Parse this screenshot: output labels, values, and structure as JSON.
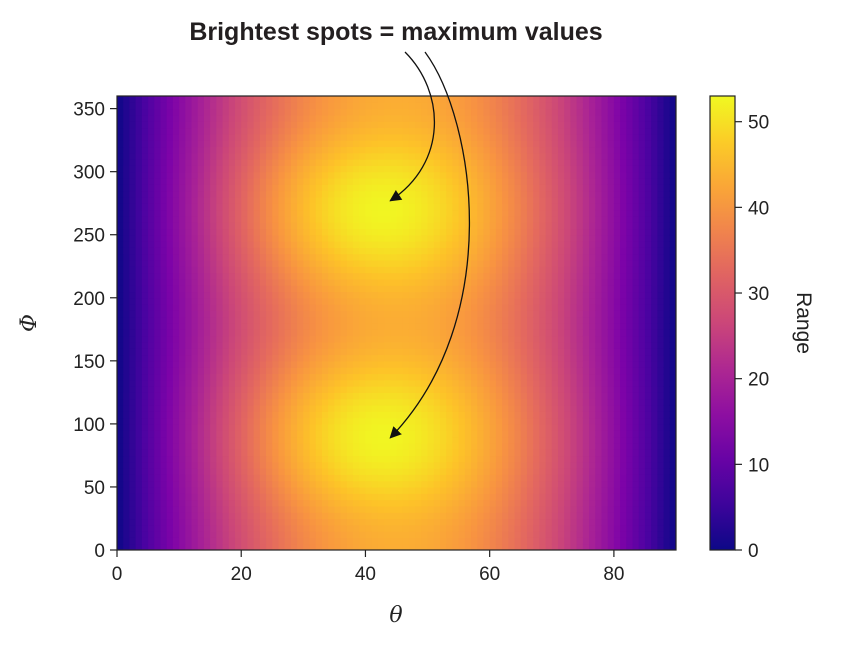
{
  "chart_data": {
    "type": "heatmap",
    "title": "",
    "xlabel": "θ",
    "ylabel": "Φ",
    "xlim": [
      0,
      90
    ],
    "ylim": [
      0,
      360
    ],
    "x_ticks": [
      0,
      20,
      40,
      60,
      80
    ],
    "y_ticks": [
      0,
      50,
      100,
      150,
      200,
      250,
      300,
      350
    ],
    "x_tick_labels": [
      "0",
      "20",
      "40",
      "60",
      "80"
    ],
    "y_tick_labels": [
      "0",
      "50",
      "100",
      "150",
      "200",
      "250",
      "300",
      "350"
    ],
    "colorbar": {
      "label": "Range",
      "range": [
        0,
        53
      ],
      "ticks": [
        0,
        10,
        20,
        30,
        40,
        50
      ],
      "tick_labels": [
        "0",
        "10",
        "20",
        "30",
        "40",
        "50"
      ],
      "colormap": "plasma"
    },
    "maxima": [
      {
        "theta": 38,
        "phi": 90,
        "value": 53
      },
      {
        "theta": 38,
        "phi": 270,
        "value": 53
      }
    ],
    "annotation": {
      "text": "Brightest spots = maximum values",
      "arrow_targets": [
        {
          "theta": 44,
          "phi": 277
        },
        {
          "theta": 44,
          "phi": 89
        }
      ]
    },
    "grid": false
  }
}
